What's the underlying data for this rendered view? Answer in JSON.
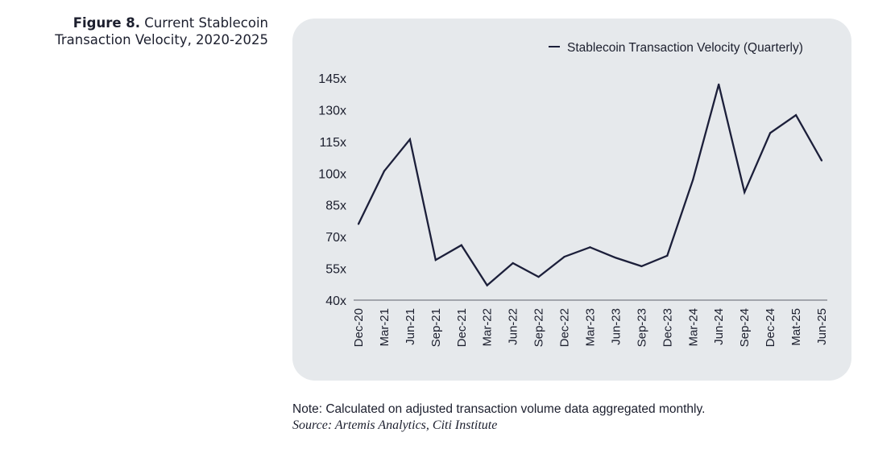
{
  "figure": {
    "label": "Figure 8.",
    "title_line1": "Current Stablecoin",
    "title_line2": "Transaction Velocity, 2020-2025"
  },
  "footer": {
    "note": "Note: Calculated on adjusted transaction volume data aggregated monthly.",
    "source": "Source: Artemis Analytics, Citi Institute"
  },
  "colors": {
    "line": "#1c1f3a",
    "panel": "#e6e9ec",
    "axis": "#7a7d85"
  },
  "chart_data": {
    "type": "line",
    "title": "Current Stablecoin Transaction Velocity, 2020-2025",
    "xlabel": "",
    "ylabel": "",
    "categories": [
      "Dec-20",
      "Mar-21",
      "Jun-21",
      "Sep-21",
      "Dec-21",
      "Mar-22",
      "Jun-22",
      "Sep-22",
      "Dec-22",
      "Mar-23",
      "Jun-23",
      "Sep-23",
      "Dec-23",
      "Mar-24",
      "Jun-24",
      "Sep-24",
      "Dec-24",
      "Mat-25",
      "Jun-25"
    ],
    "series": [
      {
        "name": "Stablecoin Transaction Velocity (Quarterly)",
        "values": [
          76,
          101,
          116,
          59,
          66,
          47,
          57.5,
          51,
          60.5,
          65,
          60,
          56,
          61,
          97,
          142,
          91,
          119,
          127.5,
          106
        ]
      }
    ],
    "yticks": [
      40,
      55,
      70,
      85,
      100,
      115,
      130,
      145
    ],
    "ytick_labels": [
      "40x",
      "55x",
      "70x",
      "85x",
      "100x",
      "115x",
      "130x",
      "145x"
    ],
    "ylim": [
      40,
      145
    ],
    "grid": false,
    "legend_position": "top-right"
  }
}
